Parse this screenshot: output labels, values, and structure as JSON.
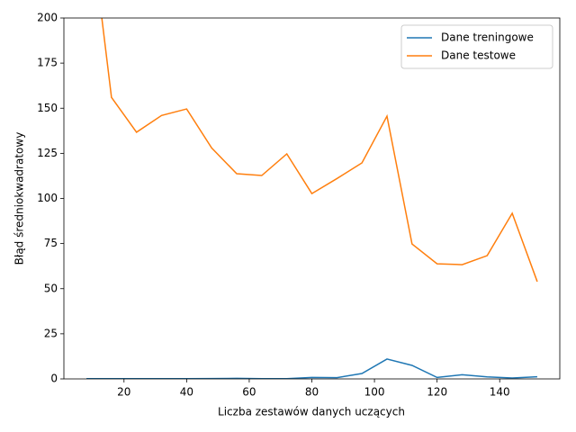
{
  "chart_data": {
    "type": "line",
    "x_label": "Liczba zestawów danych uczących",
    "y_label": "Błąd średniokwadratowy",
    "x": [
      8,
      16,
      24,
      32,
      40,
      48,
      56,
      64,
      72,
      80,
      88,
      96,
      104,
      112,
      120,
      128,
      136,
      144,
      152
    ],
    "series": [
      {
        "name": "Dane treningowe",
        "color": "#1f77b4",
        "values": [
          0.1,
          0.1,
          0.1,
          0.1,
          0.1,
          0.2,
          0.3,
          0.1,
          0.1,
          0.8,
          0.7,
          3,
          11,
          7.5,
          0.8,
          2.3,
          1.1,
          0.5,
          1.2
        ]
      },
      {
        "name": "Dane testowe",
        "color": "#ff7f0e",
        "values": [
          270,
          156,
          136.7,
          146,
          149.6,
          128,
          113.7,
          112.7,
          124.7,
          102.7,
          111,
          119.7,
          145.6,
          74.8,
          63.8,
          63.3,
          68.3,
          91.8,
          53.9
        ]
      }
    ],
    "xlim": [
      0.8,
      159.2
    ],
    "ylim": [
      0,
      200
    ],
    "xticks": [
      20,
      40,
      60,
      80,
      100,
      120,
      140
    ],
    "yticks": [
      0,
      25,
      50,
      75,
      100,
      125,
      150,
      175,
      200
    ],
    "legend": "upper right"
  }
}
